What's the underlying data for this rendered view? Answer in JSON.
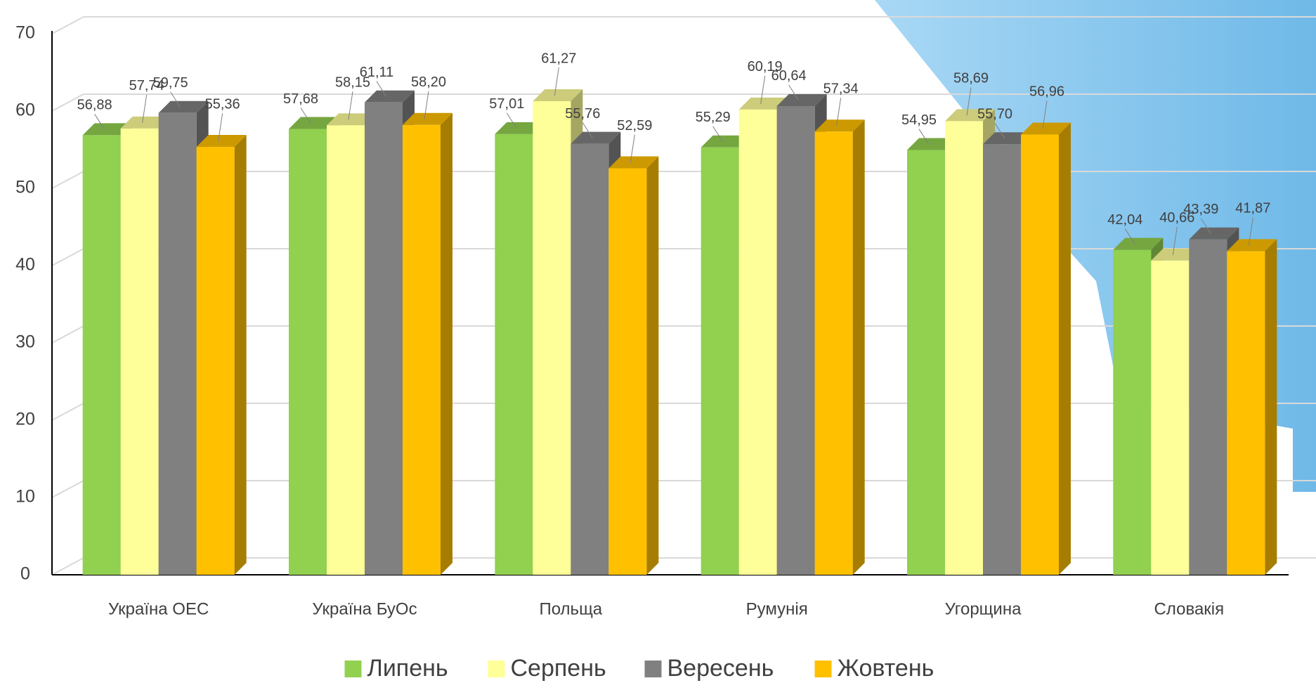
{
  "chart_data": {
    "type": "bar3d",
    "categories": [
      "Україна ОЕС",
      "Україна БуОс",
      "Польща",
      "Румунія",
      "Угорщина",
      "Словакія"
    ],
    "series": [
      {
        "name": "Липень",
        "color": "#92d050",
        "values": [
          56.88,
          57.68,
          57.01,
          55.29,
          54.95,
          42.04
        ],
        "value_labels": [
          "56,88",
          "57,68",
          "57,01",
          "55,29",
          "54,95",
          "42,04"
        ]
      },
      {
        "name": "Серпень",
        "color": "#ffff99",
        "values": [
          57.74,
          58.15,
          61.27,
          60.19,
          58.69,
          40.66
        ],
        "value_labels": [
          "57,74",
          "58,15",
          "61,27",
          "60,19",
          "58,69",
          "40,66"
        ]
      },
      {
        "name": "Вересень",
        "color": "#808080",
        "values": [
          59.75,
          61.11,
          55.76,
          60.64,
          55.7,
          43.39
        ],
        "value_labels": [
          "59,75",
          "61,11",
          "55,76",
          "60,64",
          "55,70",
          "43,39"
        ]
      },
      {
        "name": "Жовтень",
        "color": "#ffc000",
        "values": [
          55.36,
          58.2,
          52.59,
          57.34,
          56.96,
          41.87
        ],
        "value_labels": [
          "55,36",
          "58,20",
          "52,59",
          "57,34",
          "56,96",
          "41,87"
        ]
      }
    ],
    "ylim": [
      0,
      70
    ],
    "yticks": [
      0,
      10,
      20,
      30,
      40,
      50,
      60,
      70
    ],
    "grid": true,
    "legend": "bottom"
  }
}
